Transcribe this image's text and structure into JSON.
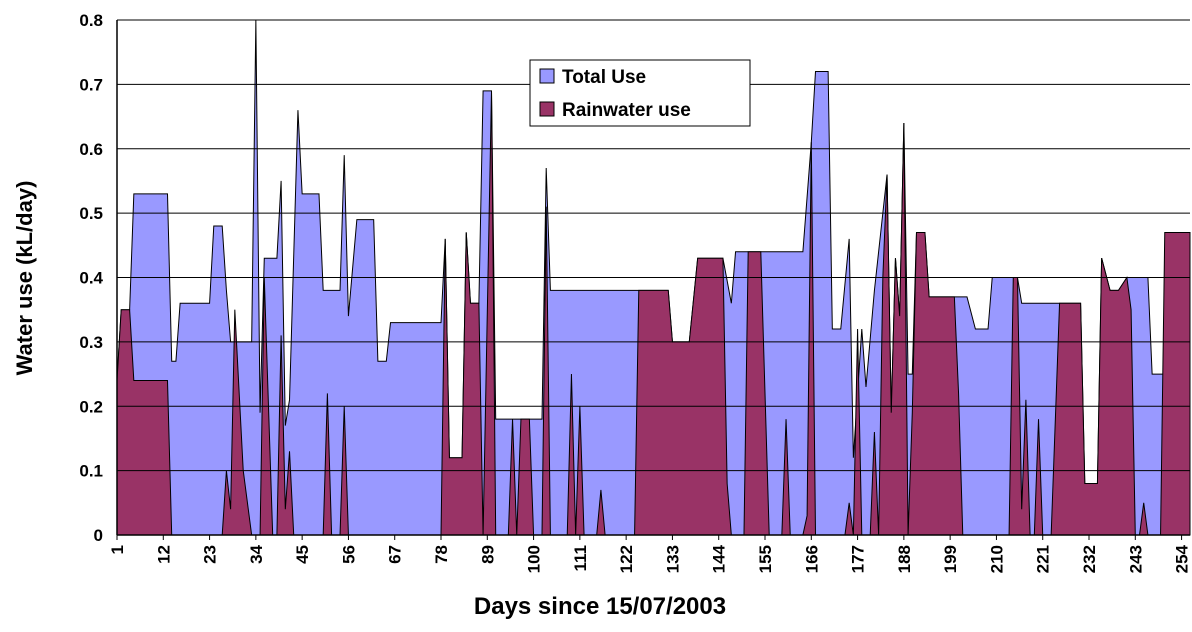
{
  "chart_data": {
    "type": "area",
    "x_label": "Days since 15/07/2003",
    "y_label": "Water use (kL/day)",
    "xlim": [
      1,
      256
    ],
    "xticks": [
      1,
      12,
      23,
      34,
      45,
      56,
      67,
      78,
      89,
      100,
      111,
      122,
      133,
      144,
      155,
      166,
      177,
      188,
      199,
      210,
      221,
      232,
      243,
      254
    ],
    "ylim": [
      0,
      0.8
    ],
    "yticks": [
      0,
      0.1,
      0.2,
      0.3,
      0.4,
      0.5,
      0.6,
      0.7,
      0.8
    ],
    "grid": true,
    "legend": "top-center",
    "series": [
      {
        "name": "Total Use",
        "color": "#9999ff",
        "x": [
          1,
          2,
          4,
          5,
          13,
          14,
          15,
          16,
          23,
          24,
          26,
          27,
          28,
          33,
          34,
          35,
          36,
          39,
          40,
          41,
          42,
          44,
          45,
          49,
          50,
          54,
          55,
          56,
          58,
          62,
          63,
          65,
          66,
          78,
          79,
          80,
          83,
          84,
          85,
          87,
          88,
          90,
          91,
          102,
          103,
          104,
          124,
          132,
          133,
          137,
          139,
          145,
          147,
          148,
          164,
          166,
          167,
          170,
          171,
          173,
          175,
          176,
          178,
          179,
          181,
          184,
          185,
          186,
          187,
          188,
          189,
          190,
          191,
          193,
          194,
          203,
          205,
          208,
          209,
          215,
          216,
          230,
          231,
          234,
          235,
          237,
          239,
          241,
          246,
          247,
          251,
          252,
          254,
          256
        ],
        "values": [
          0.24,
          0.35,
          0.35,
          0.53,
          0.53,
          0.27,
          0.27,
          0.36,
          0.36,
          0.48,
          0.48,
          0.38,
          0.3,
          0.3,
          0.8,
          0.19,
          0.43,
          0.43,
          0.55,
          0.17,
          0.21,
          0.66,
          0.53,
          0.53,
          0.38,
          0.38,
          0.59,
          0.34,
          0.49,
          0.49,
          0.27,
          0.27,
          0.33,
          0.33,
          0.46,
          0.12,
          0.12,
          0.47,
          0.36,
          0.36,
          0.69,
          0.69,
          0.18,
          0.18,
          0.57,
          0.38,
          0.38,
          0.38,
          0.3,
          0.3,
          0.43,
          0.43,
          0.36,
          0.44,
          0.44,
          0.61,
          0.72,
          0.72,
          0.32,
          0.32,
          0.46,
          0.12,
          0.32,
          0.23,
          0.38,
          0.56,
          0.19,
          0.43,
          0.34,
          0.64,
          0.25,
          0.25,
          0.47,
          0.47,
          0.37,
          0.37,
          0.32,
          0.32,
          0.4,
          0.4,
          0.36,
          0.36,
          0.08,
          0.08,
          0.43,
          0.38,
          0.38,
          0.4,
          0.4,
          0.25,
          0.25,
          0.23,
          0.47,
          0.47
        ]
      },
      {
        "name": "Rainwater use",
        "color": "#993366",
        "x": [
          1,
          2,
          4,
          5,
          13,
          14,
          26,
          27,
          28,
          29,
          31,
          33,
          35,
          36,
          38,
          39,
          40,
          41,
          42,
          43,
          50,
          51,
          52,
          54,
          55,
          56,
          78,
          79,
          80,
          83,
          84,
          85,
          87,
          88,
          90,
          91,
          94,
          95,
          96,
          97,
          99,
          100,
          102,
          103,
          104,
          108,
          109,
          110,
          111,
          112,
          115,
          116,
          117,
          124,
          125,
          132,
          133,
          137,
          139,
          145,
          146,
          147,
          150,
          151,
          154,
          156,
          159,
          160,
          161,
          164,
          165,
          166,
          167,
          174,
          175,
          176,
          177,
          178,
          180,
          181,
          182,
          183,
          184,
          185,
          186,
          187,
          188,
          189,
          190,
          191,
          193,
          194,
          200,
          201,
          202,
          213,
          214,
          215,
          216,
          217,
          218,
          219,
          220,
          221,
          223,
          225,
          230,
          231,
          234,
          235,
          237,
          239,
          241,
          242,
          243,
          244,
          245,
          246,
          249,
          250,
          256
        ],
        "values": [
          0.24,
          0.35,
          0.35,
          0.24,
          0.24,
          0,
          0,
          0.1,
          0.04,
          0.35,
          0.1,
          0,
          0,
          0.4,
          0,
          0,
          0.31,
          0.04,
          0.13,
          0,
          0,
          0.22,
          0,
          0,
          0.2,
          0,
          0,
          0.46,
          0.12,
          0.12,
          0.47,
          0.36,
          0.36,
          0,
          0.69,
          0,
          0,
          0.18,
          0,
          0.18,
          0.18,
          0,
          0,
          0.51,
          0,
          0,
          0.25,
          0,
          0.2,
          0,
          0,
          0.07,
          0,
          0,
          0.38,
          0.38,
          0.3,
          0.3,
          0.43,
          0.43,
          0.08,
          0,
          0,
          0.44,
          0.44,
          0,
          0,
          0.18,
          0,
          0,
          0.03,
          0.61,
          0,
          0,
          0.05,
          0,
          0.32,
          0,
          0,
          0.16,
          0,
          0.4,
          0.56,
          0.19,
          0.43,
          0.34,
          0.64,
          0,
          0.19,
          0.47,
          0.47,
          0.37,
          0.37,
          0.22,
          0,
          0,
          0.4,
          0.4,
          0.04,
          0.21,
          0,
          0,
          0.18,
          0,
          0,
          0.36,
          0.36,
          0.08,
          0.08,
          0.43,
          0.38,
          0.38,
          0.4,
          0.35,
          0,
          0,
          0.05,
          0,
          0,
          0.47,
          0.47
        ]
      }
    ]
  }
}
